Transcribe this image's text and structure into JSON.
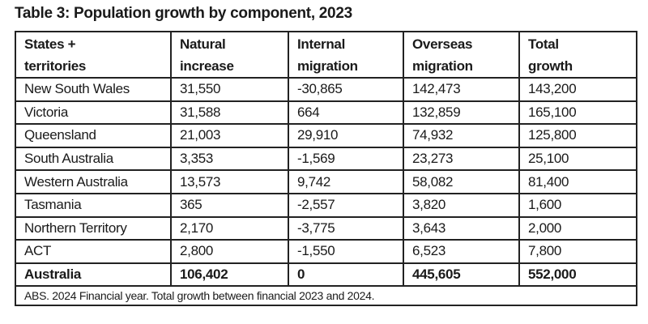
{
  "title": "Table 3: Population growth by component, 2023",
  "headers": [
    [
      "States +",
      "territories"
    ],
    [
      "Natural",
      "increase"
    ],
    [
      "Internal",
      "migration"
    ],
    [
      "Overseas",
      "migration"
    ],
    [
      "Total",
      "growth"
    ]
  ],
  "rows": [
    [
      "New South Wales",
      "31,550",
      "-30,865",
      "142,473",
      "143,200"
    ],
    [
      "Victoria",
      "31,588",
      "664",
      "132,859",
      "165,100"
    ],
    [
      "Queensland",
      "21,003",
      "29,910",
      "74,932",
      "125,800"
    ],
    [
      "South Australia",
      "3,353",
      "-1,569",
      "23,273",
      "25,100"
    ],
    [
      "Western Australia",
      "13,573",
      "9,742",
      "58,082",
      "81,400"
    ],
    [
      "Tasmania",
      "365",
      "-2,557",
      "3,820",
      "1,600"
    ],
    [
      "Northern Territory",
      "2,170",
      "-3,775",
      "3,643",
      "2,000"
    ],
    [
      "ACT",
      "2,800",
      "-1,550",
      "6,523",
      "7,800"
    ]
  ],
  "total": [
    "Australia",
    "106,402",
    "0",
    "445,605",
    "552,000"
  ],
  "footnote": "ABS.  2024 Financial year.  Total growth between financial 2023 and 2024."
}
